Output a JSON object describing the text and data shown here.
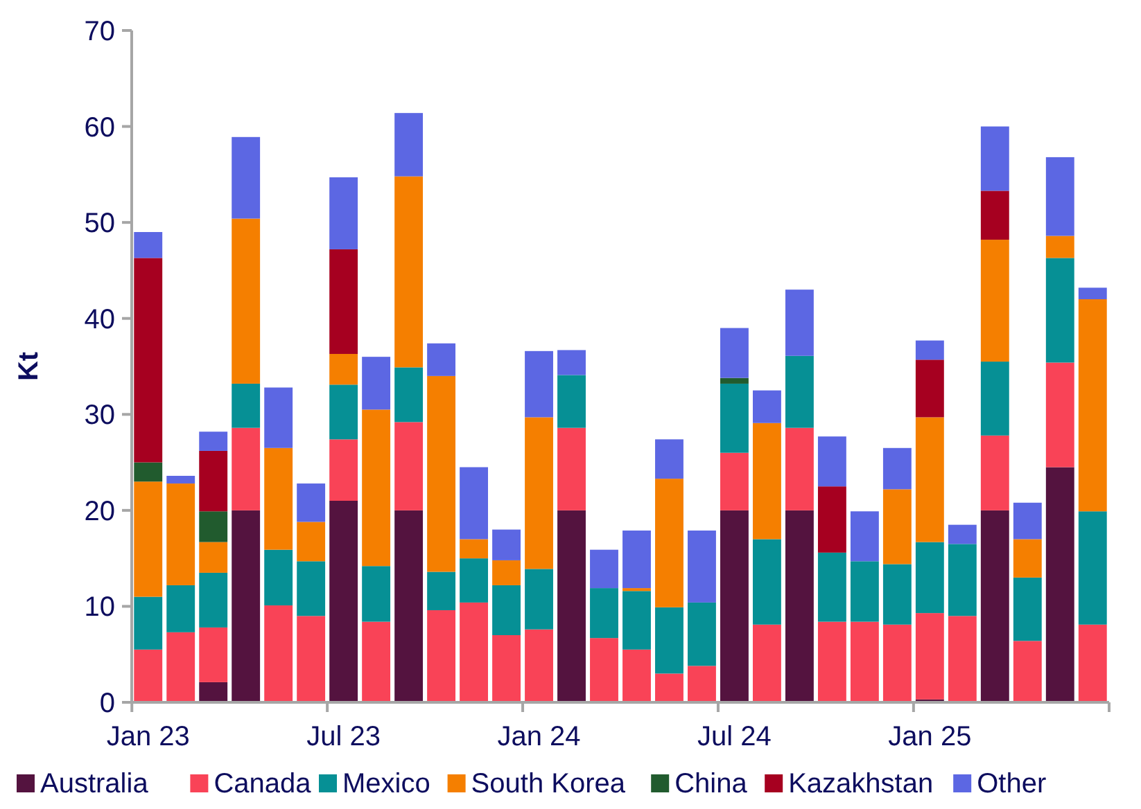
{
  "chart_data": {
    "type": "bar",
    "stacked": true,
    "ylabel": "Kt",
    "legend": "bottom",
    "grid": false,
    "categories": [
      "Jan 23",
      null,
      null,
      null,
      null,
      null,
      "Jul 23",
      null,
      null,
      null,
      null,
      null,
      "Jan 24",
      null,
      null,
      null,
      null,
      null,
      "Jul 24",
      null,
      null,
      null,
      null,
      null,
      "Jan 25",
      null,
      null,
      null,
      null,
      null
    ],
    "ylim": [
      0,
      70
    ],
    "yticks": [
      0,
      10,
      20,
      30,
      40,
      50,
      60,
      70
    ],
    "series": [
      {
        "name": "Australia",
        "color": "#54133f",
        "values": [
          null,
          null,
          2.1,
          20,
          null,
          null,
          21,
          null,
          20,
          null,
          null,
          null,
          null,
          20,
          null,
          null,
          null,
          null,
          20,
          null,
          20,
          null,
          null,
          null,
          0.3,
          null,
          20,
          null,
          24.5,
          null
        ]
      },
      {
        "name": "Canada",
        "color": "#f94357",
        "values": [
          5.5,
          7.3,
          5.7,
          8.6,
          10.1,
          9,
          6.4,
          8.4,
          9.2,
          9.6,
          10.4,
          7,
          7.6,
          8.6,
          6.7,
          5.5,
          3,
          3.8,
          6,
          8.1,
          8.6,
          8.4,
          8.4,
          8.1,
          9,
          9,
          7.8,
          6.4,
          10.9,
          8.1
        ]
      },
      {
        "name": "Mexico",
        "color": "#069095",
        "values": [
          5.5,
          4.9,
          5.7,
          4.6,
          5.8,
          5.7,
          5.7,
          5.8,
          5.7,
          4,
          4.6,
          5.2,
          6.3,
          5.5,
          5.2,
          6.1,
          6.9,
          6.6,
          7.2,
          8.9,
          7.5,
          7.2,
          6.3,
          6.3,
          7.4,
          7.5,
          7.7,
          6.6,
          10.9,
          11.8
        ]
      },
      {
        "name": "South Korea",
        "color": "#f57f00",
        "values": [
          12,
          10.6,
          3.2,
          17.2,
          10.6,
          4.1,
          3.2,
          16.3,
          19.9,
          20.4,
          2,
          2.6,
          15.8,
          null,
          null,
          0.3,
          13.4,
          null,
          null,
          12.1,
          null,
          null,
          null,
          7.8,
          13,
          null,
          12.7,
          4,
          2.3,
          22.1
        ]
      },
      {
        "name": "China",
        "color": "#215b2e",
        "values": [
          2,
          null,
          3.2,
          null,
          null,
          null,
          null,
          null,
          null,
          null,
          null,
          null,
          null,
          null,
          null,
          null,
          null,
          null,
          0.6,
          null,
          null,
          null,
          null,
          null,
          null,
          null,
          null,
          null,
          null,
          null
        ]
      },
      {
        "name": "Kazakhstan",
        "color": "#a60020",
        "values": [
          21.3,
          null,
          6.3,
          null,
          null,
          null,
          10.9,
          null,
          null,
          null,
          null,
          null,
          null,
          null,
          null,
          null,
          null,
          null,
          null,
          null,
          null,
          6.9,
          null,
          null,
          6,
          null,
          5.1,
          null,
          null,
          null
        ]
      },
      {
        "name": "Other",
        "color": "#5c67e3",
        "values": [
          2.7,
          0.8,
          2,
          8.5,
          6.3,
          4,
          7.5,
          5.5,
          6.6,
          3.4,
          7.5,
          3.2,
          6.9,
          2.6,
          4,
          6,
          4.1,
          7.5,
          5.2,
          3.4,
          6.9,
          5.2,
          5.2,
          4.3,
          2,
          2,
          6.7,
          3.8,
          8.2,
          1.2
        ]
      }
    ]
  }
}
